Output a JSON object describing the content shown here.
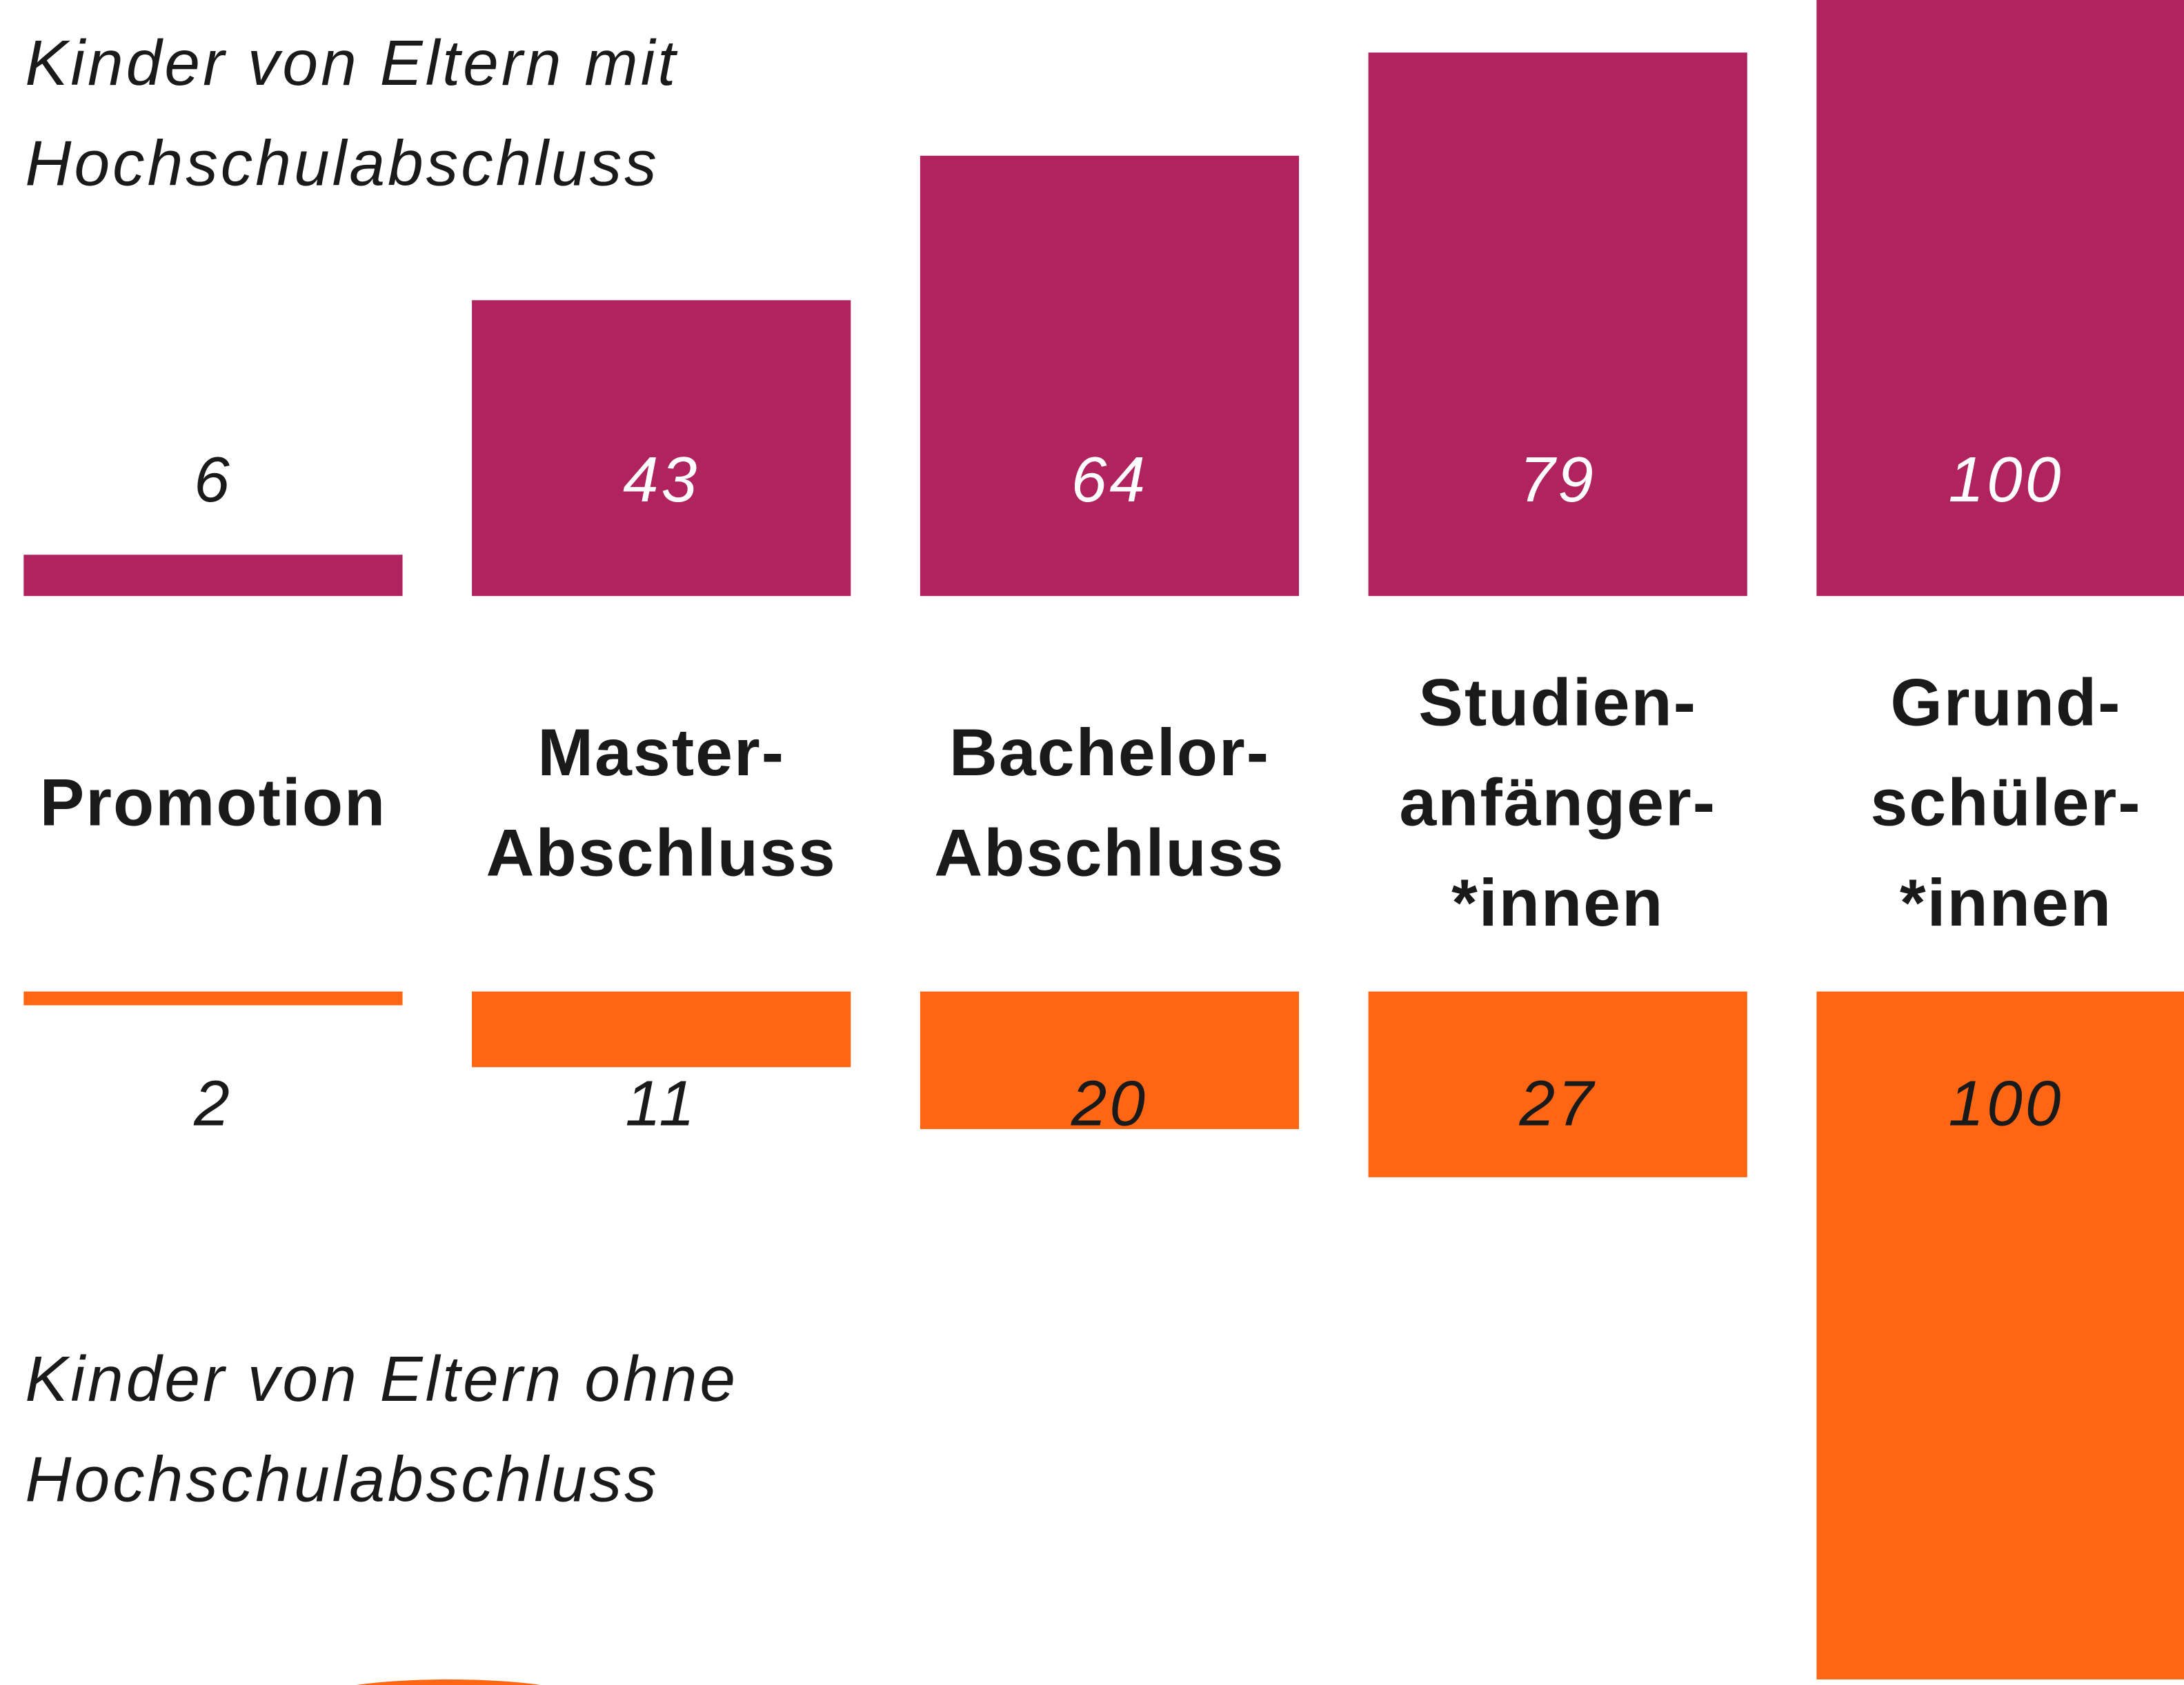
{
  "chart_data": {
    "type": "bar",
    "categories": [
      [
        "Promotion"
      ],
      [
        "Master-",
        "Abschluss"
      ],
      [
        "Bachelor-",
        "Abschluss"
      ],
      [
        "Studien-",
        "anfänger-",
        "*innen"
      ],
      [
        "Grund-",
        "schüler-",
        "*innen"
      ]
    ],
    "series": [
      {
        "name": "Kinder von Eltern mit Hochschulabschluss",
        "color": "#b0235f",
        "values": [
          6,
          43,
          64,
          79,
          100
        ]
      },
      {
        "name": "Kinder von Eltern ohne Hochschulabschluss",
        "color": "#ff6614",
        "values": [
          2,
          11,
          20,
          27,
          100
        ]
      }
    ]
  }
}
